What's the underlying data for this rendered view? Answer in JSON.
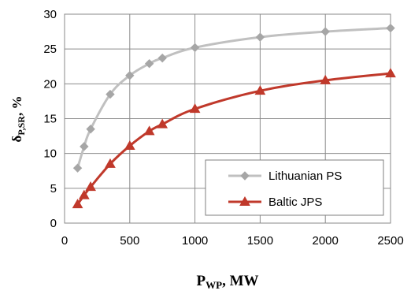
{
  "chart_data": {
    "type": "line",
    "xlabel": {
      "main": "P",
      "sub": "WP",
      "rest": ", MW"
    },
    "ylabel": {
      "main": "δ",
      "sub": "P,SR",
      "rest": ",  %"
    },
    "xlim": [
      0,
      2500
    ],
    "ylim": [
      0,
      30
    ],
    "x_ticks": [
      "0",
      "500",
      "1000",
      "1500",
      "2000",
      "2500"
    ],
    "y_ticks": [
      "0",
      "5",
      "10",
      "15",
      "20",
      "25",
      "30"
    ],
    "grid": true,
    "legend_position": "bottom-right",
    "series": [
      {
        "name": "Lithuanian PS",
        "color": "#c0c0c0",
        "marker": "diamond",
        "points": [
          [
            100,
            7.9
          ],
          [
            150,
            11
          ],
          [
            200,
            13.5
          ],
          [
            350,
            18.5
          ],
          [
            500,
            21.2
          ],
          [
            650,
            22.9
          ],
          [
            750,
            23.7
          ],
          [
            1000,
            25.2
          ],
          [
            1500,
            26.7
          ],
          [
            2000,
            27.5
          ],
          [
            2500,
            28
          ]
        ]
      },
      {
        "name": "Baltic JPS",
        "color": "#c0392b",
        "marker": "triangle",
        "points": [
          [
            100,
            2.7
          ],
          [
            150,
            4
          ],
          [
            200,
            5.2
          ],
          [
            350,
            8.5
          ],
          [
            500,
            11.1
          ],
          [
            650,
            13.2
          ],
          [
            750,
            14.2
          ],
          [
            1000,
            16.4
          ],
          [
            1500,
            19
          ],
          [
            2000,
            20.5
          ],
          [
            2500,
            21.5
          ]
        ]
      }
    ]
  }
}
